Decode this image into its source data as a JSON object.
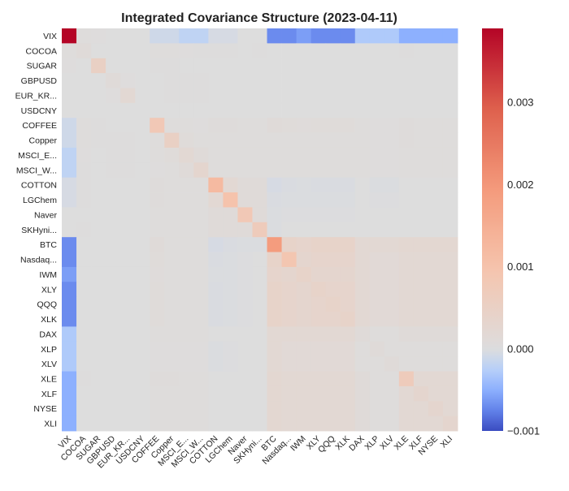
{
  "chart_data": {
    "type": "heatmap",
    "title": "Integrated Covariance Structure (2023-04-11)",
    "labels": [
      "VIX",
      "COCOA",
      "SUGAR",
      "GBPUSD",
      "EUR_KR...",
      "USDCNY",
      "COFFEE",
      "Copper",
      "MSCI_E...",
      "MSCI_W...",
      "COTTON",
      "LGChem",
      "Naver",
      "SKHyni...",
      "BTC",
      "Nasdaq...",
      "IWM",
      "XLY",
      "QQQ",
      "XLK",
      "DAX",
      "XLP",
      "XLV",
      "XLE",
      "XLF",
      "NYSE",
      "XLI"
    ],
    "x_tick_labels": [
      "VIX",
      "COCOA",
      "SUGAR",
      "GBPUSD",
      "EUR_KR...",
      "USDCNY",
      "COFFEE",
      "Copper",
      "MSCI_E...",
      "MSCI_W...",
      "COTTON",
      "LGChem",
      "Naver",
      "SKHyni...",
      "BTC",
      "Nasdaq...",
      "IWM",
      "XLY",
      "QQQ",
      "XLK",
      "DAX",
      "XLP",
      "XLV",
      "XLE",
      "XLF",
      "NYSE",
      "XLI"
    ],
    "colormap": "coolwarm",
    "vmin": -0.001,
    "vmax": 0.0039,
    "colorbar_ticks": [
      -0.001,
      0.0,
      0.001,
      0.002,
      0.003
    ],
    "colorbar_tick_labels": [
      "−0.001",
      "0.000",
      "0.001",
      "0.002",
      "0.003"
    ],
    "values": [
      [
        0.0039,
        5e-05,
        3e-05,
        0.0,
        0.0,
        0.0,
        -0.0001,
        -0.0001,
        -0.0002,
        -0.0002,
        -5e-05,
        -5e-05,
        0.0,
        0.0,
        -0.0007,
        -0.0007,
        -0.0006,
        -0.0007,
        -0.0007,
        -0.0007,
        -0.0003,
        -0.0003,
        -0.0003,
        -0.0005,
        -0.0005,
        -0.0005,
        -0.0005
      ],
      [
        5e-05,
        0.0001,
        0.0,
        0.0,
        0.0,
        0.0,
        5e-05,
        4e-05,
        3e-05,
        2e-05,
        2e-05,
        2e-05,
        1e-05,
        2e-05,
        0.0,
        1e-05,
        1e-05,
        1e-05,
        1e-05,
        1e-05,
        1e-05,
        0.0,
        0.0,
        2e-05,
        1e-05,
        1e-05,
        1e-05
      ],
      [
        3e-05,
        0.0,
        0.0005,
        0.0,
        0.0,
        0.0,
        2e-05,
        2e-05,
        1e-05,
        1e-05,
        1e-05,
        1e-05,
        1e-05,
        1e-05,
        0.0,
        1e-05,
        1e-05,
        1e-05,
        1e-05,
        1e-05,
        1e-05,
        0.0,
        0.0,
        1e-05,
        1e-05,
        1e-05,
        1e-05
      ],
      [
        0.0,
        0.0,
        0.0,
        0.0001,
        3e-05,
        0.0,
        1e-05,
        2e-05,
        2e-05,
        2e-05,
        1e-05,
        1e-05,
        1e-05,
        1e-05,
        0.0,
        1e-05,
        1e-05,
        1e-05,
        1e-05,
        1e-05,
        1e-05,
        0.0,
        0.0,
        1e-05,
        1e-05,
        1e-05,
        1e-05
      ],
      [
        0.0,
        0.0,
        0.0,
        3e-05,
        0.0002,
        0.0,
        1e-05,
        2e-05,
        2e-05,
        2e-05,
        1e-05,
        1e-05,
        1e-05,
        1e-05,
        0.0,
        1e-05,
        1e-05,
        1e-05,
        1e-05,
        1e-05,
        1e-05,
        0.0,
        0.0,
        1e-05,
        1e-05,
        1e-05,
        1e-05
      ],
      [
        0.0,
        0.0,
        0.0,
        0.0,
        0.0,
        1e-05,
        0.0,
        0.0,
        0.0,
        0.0,
        0.0,
        0.0,
        0.0,
        0.0,
        0.0,
        0.0,
        0.0,
        0.0,
        0.0,
        0.0,
        0.0,
        0.0,
        0.0,
        0.0,
        0.0,
        0.0,
        0.0
      ],
      [
        -0.0001,
        5e-05,
        2e-05,
        1e-05,
        1e-05,
        0.0,
        0.0008,
        5e-05,
        4e-05,
        3e-05,
        6e-05,
        6e-05,
        5e-05,
        5e-05,
        0.0001,
        8e-05,
        7e-05,
        8e-05,
        8e-05,
        8e-05,
        5e-05,
        3e-05,
        3e-05,
        6e-05,
        5e-05,
        5e-05,
        5e-05
      ],
      [
        -0.0001,
        4e-05,
        2e-05,
        2e-05,
        2e-05,
        0.0,
        5e-05,
        0.0005,
        8e-05,
        5e-05,
        5e-05,
        5e-05,
        4e-05,
        5e-05,
        5e-05,
        5e-05,
        5e-05,
        5e-05,
        5e-05,
        5e-05,
        5e-05,
        3e-05,
        3e-05,
        6e-05,
        5e-05,
        5e-05,
        5e-05
      ],
      [
        -0.0002,
        3e-05,
        1e-05,
        2e-05,
        2e-05,
        0.0,
        4e-05,
        8e-05,
        0.0002,
        0.0001,
        5e-05,
        5e-05,
        5e-05,
        5e-05,
        4e-05,
        5e-05,
        5e-05,
        5e-05,
        5e-05,
        5e-05,
        5e-05,
        3e-05,
        3e-05,
        5e-05,
        5e-05,
        5e-05,
        5e-05
      ],
      [
        -0.0002,
        2e-05,
        1e-05,
        2e-05,
        2e-05,
        0.0,
        3e-05,
        5e-05,
        0.0001,
        0.0003,
        5e-05,
        5e-05,
        4e-05,
        5e-05,
        4e-05,
        5e-05,
        5e-05,
        5e-05,
        5e-05,
        5e-05,
        5e-05,
        3e-05,
        3e-05,
        5e-05,
        5e-05,
        5e-05,
        5e-05
      ],
      [
        -5e-05,
        2e-05,
        1e-05,
        1e-05,
        1e-05,
        0.0,
        6e-05,
        5e-05,
        5e-05,
        5e-05,
        0.0012,
        0.0002,
        0.0001,
        0.0001,
        -5e-05,
        -3e-05,
        -2e-05,
        -3e-05,
        -3e-05,
        -3e-05,
        1e-05,
        -2e-05,
        -2e-05,
        1e-05,
        0.0,
        0.0,
        0.0
      ],
      [
        -5e-05,
        2e-05,
        1e-05,
        1e-05,
        1e-05,
        0.0,
        6e-05,
        5e-05,
        5e-05,
        5e-05,
        0.0002,
        0.001,
        0.0001,
        0.0001,
        -3e-05,
        -2e-05,
        -2e-05,
        -2e-05,
        -2e-05,
        -2e-05,
        1e-05,
        -1e-05,
        -1e-05,
        1e-05,
        0.0,
        0.0,
        0.0
      ],
      [
        0.0,
        1e-05,
        1e-05,
        1e-05,
        1e-05,
        0.0,
        5e-05,
        4e-05,
        5e-05,
        4e-05,
        0.0001,
        0.0001,
        0.0008,
        0.0001,
        -2e-05,
        -1e-05,
        -1e-05,
        -1e-05,
        -1e-05,
        -1e-05,
        1e-05,
        0.0,
        0.0,
        1e-05,
        0.0,
        0.0,
        0.0
      ],
      [
        0.0,
        2e-05,
        1e-05,
        1e-05,
        1e-05,
        0.0,
        5e-05,
        5e-05,
        5e-05,
        5e-05,
        0.0001,
        0.0001,
        0.0001,
        0.0007,
        -2e-05,
        0.0,
        0.0,
        0.0,
        0.0,
        0.0,
        1e-05,
        0.0,
        0.0,
        1e-05,
        0.0,
        0.0,
        0.0
      ],
      [
        -0.0007,
        0.0,
        0.0,
        0.0,
        0.0,
        0.0,
        0.0001,
        5e-05,
        4e-05,
        4e-05,
        -5e-05,
        -3e-05,
        -2e-05,
        -2e-05,
        0.0019,
        0.0004,
        0.00035,
        0.0004,
        0.0004,
        0.0004,
        0.0002,
        0.0002,
        0.0002,
        0.00025,
        0.00025,
        0.00025,
        0.00025
      ],
      [
        -0.0007,
        1e-05,
        1e-05,
        1e-05,
        1e-05,
        0.0,
        8e-05,
        5e-05,
        5e-05,
        5e-05,
        -3e-05,
        -2e-05,
        -1e-05,
        0.0,
        0.0004,
        0.0009,
        0.0003,
        0.00035,
        0.00035,
        0.00035,
        0.0002,
        0.00015,
        0.00015,
        0.0002,
        0.0002,
        0.0002,
        0.0002
      ],
      [
        -0.0006,
        1e-05,
        1e-05,
        1e-05,
        1e-05,
        0.0,
        7e-05,
        5e-05,
        5e-05,
        5e-05,
        -2e-05,
        -2e-05,
        -1e-05,
        0.0,
        0.00035,
        0.0003,
        0.0004,
        0.0003,
        0.0003,
        0.0003,
        0.0002,
        0.00015,
        0.00015,
        0.0002,
        0.0002,
        0.0002,
        0.0002
      ],
      [
        -0.0007,
        1e-05,
        1e-05,
        1e-05,
        1e-05,
        0.0,
        8e-05,
        5e-05,
        5e-05,
        5e-05,
        -3e-05,
        -2e-05,
        -1e-05,
        0.0,
        0.0004,
        0.00035,
        0.0003,
        0.0004,
        0.00035,
        0.00035,
        0.0002,
        0.00015,
        0.00015,
        0.0002,
        0.0002,
        0.0002,
        0.0002
      ],
      [
        -0.0007,
        1e-05,
        1e-05,
        1e-05,
        1e-05,
        0.0,
        8e-05,
        5e-05,
        5e-05,
        5e-05,
        -3e-05,
        -2e-05,
        -1e-05,
        0.0,
        0.0004,
        0.00035,
        0.0003,
        0.00035,
        0.0004,
        0.00035,
        0.0002,
        0.00015,
        0.00015,
        0.0002,
        0.0002,
        0.0002,
        0.0002
      ],
      [
        -0.0007,
        1e-05,
        1e-05,
        1e-05,
        1e-05,
        0.0,
        8e-05,
        5e-05,
        5e-05,
        5e-05,
        -3e-05,
        -2e-05,
        -1e-05,
        0.0,
        0.0004,
        0.00035,
        0.0003,
        0.00035,
        0.00035,
        0.0004,
        0.0002,
        0.00015,
        0.00015,
        0.0002,
        0.0002,
        0.0002,
        0.0002
      ],
      [
        -0.0003,
        1e-05,
        1e-05,
        1e-05,
        1e-05,
        0.0,
        5e-05,
        5e-05,
        5e-05,
        5e-05,
        1e-05,
        1e-05,
        1e-05,
        1e-05,
        0.0002,
        0.0002,
        0.0002,
        0.0002,
        0.0002,
        0.0002,
        0.0001,
        5e-05,
        5e-05,
        0.0001,
        0.0001,
        0.0001,
        0.0001
      ],
      [
        -0.0003,
        0.0,
        0.0,
        0.0,
        0.0,
        0.0,
        3e-05,
        3e-05,
        3e-05,
        3e-05,
        -2e-05,
        -1e-05,
        0.0,
        0.0,
        0.0002,
        0.00015,
        0.00015,
        0.00015,
        0.00015,
        0.00015,
        5e-05,
        0.0001,
        5e-05,
        5e-05,
        5e-05,
        5e-05,
        5e-05
      ],
      [
        -0.0003,
        0.0,
        0.0,
        0.0,
        0.0,
        0.0,
        3e-05,
        3e-05,
        3e-05,
        3e-05,
        -2e-05,
        -1e-05,
        0.0,
        0.0,
        0.0002,
        0.00015,
        0.00015,
        0.00015,
        0.00015,
        0.00015,
        5e-05,
        5e-05,
        0.0001,
        5e-05,
        5e-05,
        5e-05,
        5e-05
      ],
      [
        -0.0005,
        2e-05,
        1e-05,
        1e-05,
        1e-05,
        0.0,
        6e-05,
        6e-05,
        5e-05,
        5e-05,
        1e-05,
        1e-05,
        1e-05,
        1e-05,
        0.00025,
        0.0002,
        0.0002,
        0.0002,
        0.0002,
        0.0002,
        0.0001,
        5e-05,
        5e-05,
        0.0007,
        0.0002,
        0.0002,
        0.0002
      ],
      [
        -0.0005,
        1e-05,
        1e-05,
        1e-05,
        1e-05,
        0.0,
        5e-05,
        5e-05,
        5e-05,
        5e-05,
        0.0,
        0.0,
        0.0,
        0.0,
        0.00025,
        0.0002,
        0.0002,
        0.0002,
        0.0002,
        0.0002,
        0.0001,
        5e-05,
        5e-05,
        0.0002,
        0.0003,
        0.0002,
        0.0002
      ],
      [
        -0.0005,
        1e-05,
        1e-05,
        1e-05,
        1e-05,
        0.0,
        5e-05,
        5e-05,
        5e-05,
        5e-05,
        0.0,
        0.0,
        0.0,
        0.0,
        0.00025,
        0.0002,
        0.0002,
        0.0002,
        0.0002,
        0.0002,
        0.0001,
        5e-05,
        5e-05,
        0.0002,
        0.0002,
        0.0003,
        0.0002
      ],
      [
        -0.0005,
        1e-05,
        1e-05,
        1e-05,
        1e-05,
        0.0,
        5e-05,
        5e-05,
        5e-05,
        5e-05,
        0.0,
        0.0,
        0.0,
        0.0,
        0.00025,
        0.0002,
        0.0002,
        0.0002,
        0.0002,
        0.0002,
        0.0001,
        5e-05,
        5e-05,
        0.0002,
        0.0002,
        0.0002,
        0.0003
      ]
    ]
  }
}
